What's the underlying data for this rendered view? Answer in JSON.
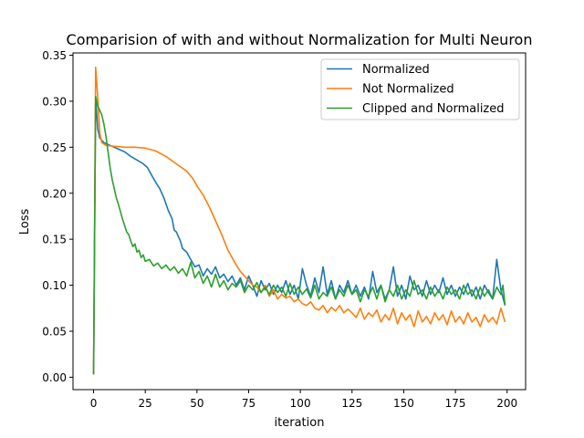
{
  "chart_data": {
    "type": "line",
    "title": "Comparision of with and without Normalization for Multi Neuron",
    "xlabel": "iteration",
    "ylabel": "Loss",
    "xlim": [
      -9.95,
      208.95
    ],
    "ylim": [
      -0.0135,
      0.3525
    ],
    "xticks": [
      0,
      25,
      50,
      75,
      100,
      125,
      150,
      175,
      200
    ],
    "yticks": [
      0.0,
      0.05,
      0.1,
      0.15,
      0.2,
      0.25,
      0.3,
      0.35
    ],
    "xtick_labels": [
      "0",
      "25",
      "50",
      "75",
      "100",
      "125",
      "150",
      "175",
      "200"
    ],
    "ytick_labels": [
      "0.00",
      "0.05",
      "0.10",
      "0.15",
      "0.20",
      "0.25",
      "0.30",
      "0.35"
    ],
    "grid": false,
    "legend_position": "top-right",
    "series": [
      {
        "name": "Normalized",
        "color": "#1f77b4",
        "points": [
          [
            0,
            0.004
          ],
          [
            1,
            0.305
          ],
          [
            2,
            0.27
          ],
          [
            3,
            0.26
          ],
          [
            5,
            0.255
          ],
          [
            8,
            0.252
          ],
          [
            12,
            0.248
          ],
          [
            15,
            0.245
          ],
          [
            18,
            0.24
          ],
          [
            21,
            0.236
          ],
          [
            24,
            0.232
          ],
          [
            26,
            0.228
          ],
          [
            28,
            0.22
          ],
          [
            30,
            0.212
          ],
          [
            32,
            0.205
          ],
          [
            34,
            0.195
          ],
          [
            36,
            0.182
          ],
          [
            38,
            0.172
          ],
          [
            39,
            0.16
          ],
          [
            40,
            0.158
          ],
          [
            42,
            0.148
          ],
          [
            43,
            0.14
          ],
          [
            45,
            0.136
          ],
          [
            47,
            0.128
          ],
          [
            49,
            0.12
          ],
          [
            51,
            0.122
          ],
          [
            53,
            0.11
          ],
          [
            55,
            0.118
          ],
          [
            57,
            0.112
          ],
          [
            59,
            0.12
          ],
          [
            61,
            0.108
          ],
          [
            63,
            0.112
          ],
          [
            65,
            0.104
          ],
          [
            67,
            0.11
          ],
          [
            69,
            0.1
          ],
          [
            71,
            0.108
          ],
          [
            73,
            0.095
          ],
          [
            75,
            0.11
          ],
          [
            77,
            0.1
          ],
          [
            79,
            0.088
          ],
          [
            81,
            0.105
          ],
          [
            83,
            0.095
          ],
          [
            85,
            0.102
          ],
          [
            87,
            0.09
          ],
          [
            89,
            0.1
          ],
          [
            91,
            0.092
          ],
          [
            93,
            0.105
          ],
          [
            95,
            0.09
          ],
          [
            97,
            0.1
          ],
          [
            99,
            0.085
          ],
          [
            101,
            0.118
          ],
          [
            103,
            0.1
          ],
          [
            105,
            0.088
          ],
          [
            107,
            0.108
          ],
          [
            109,
            0.092
          ],
          [
            111,
            0.12
          ],
          [
            113,
            0.09
          ],
          [
            115,
            0.105
          ],
          [
            117,
            0.085
          ],
          [
            119,
            0.1
          ],
          [
            121,
            0.092
          ],
          [
            123,
            0.105
          ],
          [
            125,
            0.09
          ],
          [
            127,
            0.1
          ],
          [
            129,
            0.088
          ],
          [
            131,
            0.098
          ],
          [
            133,
            0.085
          ],
          [
            135,
            0.115
          ],
          [
            137,
            0.092
          ],
          [
            139,
            0.1
          ],
          [
            141,
            0.085
          ],
          [
            143,
            0.095
          ],
          [
            145,
            0.12
          ],
          [
            147,
            0.088
          ],
          [
            149,
            0.1
          ],
          [
            151,
            0.085
          ],
          [
            153,
            0.11
          ],
          [
            155,
            0.095
          ],
          [
            157,
            0.1
          ],
          [
            159,
            0.088
          ],
          [
            161,
            0.105
          ],
          [
            163,
            0.09
          ],
          [
            165,
            0.1
          ],
          [
            167,
            0.092
          ],
          [
            169,
            0.108
          ],
          [
            171,
            0.09
          ],
          [
            173,
            0.1
          ],
          [
            175,
            0.088
          ],
          [
            177,
            0.098
          ],
          [
            179,
            0.09
          ],
          [
            181,
            0.102
          ],
          [
            183,
            0.088
          ],
          [
            185,
            0.098
          ],
          [
            187,
            0.085
          ],
          [
            189,
            0.1
          ],
          [
            191,
            0.092
          ],
          [
            193,
            0.085
          ],
          [
            195,
            0.128
          ],
          [
            197,
            0.095
          ],
          [
            199,
            0.078
          ]
        ]
      },
      {
        "name": "Not Normalized",
        "color": "#ff7f0e",
        "points": [
          [
            0,
            0.003
          ],
          [
            1,
            0.337
          ],
          [
            2,
            0.305
          ],
          [
            3,
            0.265
          ],
          [
            4,
            0.255
          ],
          [
            6,
            0.252
          ],
          [
            10,
            0.251
          ],
          [
            15,
            0.25
          ],
          [
            20,
            0.25
          ],
          [
            25,
            0.249
          ],
          [
            30,
            0.246
          ],
          [
            35,
            0.24
          ],
          [
            40,
            0.232
          ],
          [
            45,
            0.224
          ],
          [
            48,
            0.216
          ],
          [
            50,
            0.208
          ],
          [
            53,
            0.198
          ],
          [
            56,
            0.185
          ],
          [
            59,
            0.17
          ],
          [
            62,
            0.155
          ],
          [
            65,
            0.138
          ],
          [
            67,
            0.13
          ],
          [
            69,
            0.122
          ],
          [
            71,
            0.115
          ],
          [
            73,
            0.11
          ],
          [
            75,
            0.105
          ],
          [
            77,
            0.1
          ],
          [
            79,
            0.098
          ],
          [
            81,
            0.092
          ],
          [
            83,
            0.1
          ],
          [
            85,
            0.088
          ],
          [
            87,
            0.095
          ],
          [
            89,
            0.085
          ],
          [
            91,
            0.09
          ],
          [
            93,
            0.086
          ],
          [
            95,
            0.088
          ],
          [
            97,
            0.082
          ],
          [
            99,
            0.085
          ],
          [
            101,
            0.08
          ],
          [
            103,
            0.078
          ],
          [
            105,
            0.082
          ],
          [
            107,
            0.075
          ],
          [
            109,
            0.073
          ],
          [
            111,
            0.078
          ],
          [
            113,
            0.07
          ],
          [
            115,
            0.076
          ],
          [
            117,
            0.072
          ],
          [
            119,
            0.078
          ],
          [
            121,
            0.07
          ],
          [
            123,
            0.074
          ],
          [
            125,
            0.07
          ],
          [
            127,
            0.065
          ],
          [
            129,
            0.075
          ],
          [
            131,
            0.063
          ],
          [
            133,
            0.07
          ],
          [
            135,
            0.066
          ],
          [
            137,
            0.073
          ],
          [
            139,
            0.06
          ],
          [
            141,
            0.068
          ],
          [
            143,
            0.062
          ],
          [
            145,
            0.075
          ],
          [
            147,
            0.058
          ],
          [
            149,
            0.07
          ],
          [
            151,
            0.062
          ],
          [
            153,
            0.068
          ],
          [
            155,
            0.055
          ],
          [
            157,
            0.072
          ],
          [
            159,
            0.06
          ],
          [
            161,
            0.066
          ],
          [
            163,
            0.058
          ],
          [
            165,
            0.07
          ],
          [
            167,
            0.062
          ],
          [
            169,
            0.068
          ],
          [
            171,
            0.057
          ],
          [
            173,
            0.072
          ],
          [
            175,
            0.06
          ],
          [
            177,
            0.066
          ],
          [
            179,
            0.058
          ],
          [
            181,
            0.07
          ],
          [
            183,
            0.06
          ],
          [
            185,
            0.065
          ],
          [
            187,
            0.055
          ],
          [
            189,
            0.068
          ],
          [
            191,
            0.06
          ],
          [
            193,
            0.065
          ],
          [
            195,
            0.058
          ],
          [
            197,
            0.075
          ],
          [
            199,
            0.06
          ]
        ]
      },
      {
        "name": "Clipped and Normalized",
        "color": "#2ca02c",
        "points": [
          [
            0,
            0.003
          ],
          [
            1,
            0.305
          ],
          [
            2,
            0.295
          ],
          [
            3,
            0.29
          ],
          [
            4,
            0.285
          ],
          [
            5,
            0.275
          ],
          [
            6,
            0.262
          ],
          [
            7,
            0.245
          ],
          [
            8,
            0.228
          ],
          [
            9,
            0.215
          ],
          [
            10,
            0.205
          ],
          [
            11,
            0.195
          ],
          [
            12,
            0.188
          ],
          [
            13,
            0.18
          ],
          [
            14,
            0.172
          ],
          [
            15,
            0.165
          ],
          [
            16,
            0.158
          ],
          [
            17,
            0.155
          ],
          [
            18,
            0.148
          ],
          [
            19,
            0.142
          ],
          [
            20,
            0.145
          ],
          [
            21,
            0.136
          ],
          [
            22,
            0.138
          ],
          [
            23,
            0.13
          ],
          [
            24,
            0.133
          ],
          [
            25,
            0.126
          ],
          [
            27,
            0.128
          ],
          [
            29,
            0.121
          ],
          [
            31,
            0.124
          ],
          [
            33,
            0.118
          ],
          [
            35,
            0.122
          ],
          [
            37,
            0.116
          ],
          [
            39,
            0.12
          ],
          [
            41,
            0.113
          ],
          [
            43,
            0.118
          ],
          [
            45,
            0.11
          ],
          [
            47,
            0.125
          ],
          [
            49,
            0.108
          ],
          [
            51,
            0.115
          ],
          [
            53,
            0.102
          ],
          [
            55,
            0.11
          ],
          [
            57,
            0.098
          ],
          [
            59,
            0.112
          ],
          [
            61,
            0.098
          ],
          [
            63,
            0.105
          ],
          [
            65,
            0.095
          ],
          [
            67,
            0.102
          ],
          [
            69,
            0.098
          ],
          [
            71,
            0.105
          ],
          [
            73,
            0.092
          ],
          [
            75,
            0.1
          ],
          [
            77,
            0.095
          ],
          [
            79,
            0.103
          ],
          [
            81,
            0.092
          ],
          [
            83,
            0.098
          ],
          [
            85,
            0.09
          ],
          [
            87,
            0.1
          ],
          [
            89,
            0.092
          ],
          [
            91,
            0.098
          ],
          [
            93,
            0.088
          ],
          [
            95,
            0.102
          ],
          [
            97,
            0.09
          ],
          [
            99,
            0.098
          ],
          [
            101,
            0.09
          ],
          [
            103,
            0.096
          ],
          [
            105,
            0.086
          ],
          [
            107,
            0.1
          ],
          [
            109,
            0.085
          ],
          [
            111,
            0.092
          ],
          [
            113,
            0.088
          ],
          [
            115,
            0.098
          ],
          [
            117,
            0.085
          ],
          [
            119,
            0.095
          ],
          [
            121,
            0.088
          ],
          [
            123,
            0.1
          ],
          [
            125,
            0.09
          ],
          [
            127,
            0.095
          ],
          [
            129,
            0.082
          ],
          [
            131,
            0.095
          ],
          [
            133,
            0.088
          ],
          [
            135,
            0.098
          ],
          [
            137,
            0.085
          ],
          [
            139,
            0.1
          ],
          [
            141,
            0.082
          ],
          [
            143,
            0.095
          ],
          [
            145,
            0.088
          ],
          [
            147,
            0.1
          ],
          [
            149,
            0.085
          ],
          [
            151,
            0.095
          ],
          [
            153,
            0.088
          ],
          [
            155,
            0.105
          ],
          [
            157,
            0.09
          ],
          [
            159,
            0.095
          ],
          [
            161,
            0.085
          ],
          [
            163,
            0.098
          ],
          [
            165,
            0.088
          ],
          [
            167,
            0.095
          ],
          [
            169,
            0.085
          ],
          [
            171,
            0.098
          ],
          [
            173,
            0.09
          ],
          [
            175,
            0.095
          ],
          [
            177,
            0.085
          ],
          [
            179,
            0.1
          ],
          [
            181,
            0.09
          ],
          [
            183,
            0.095
          ],
          [
            185,
            0.085
          ],
          [
            187,
            0.098
          ],
          [
            189,
            0.088
          ],
          [
            191,
            0.095
          ],
          [
            193,
            0.085
          ],
          [
            195,
            0.098
          ],
          [
            197,
            0.09
          ],
          [
            198,
            0.1
          ],
          [
            199,
            0.078
          ]
        ]
      }
    ]
  }
}
